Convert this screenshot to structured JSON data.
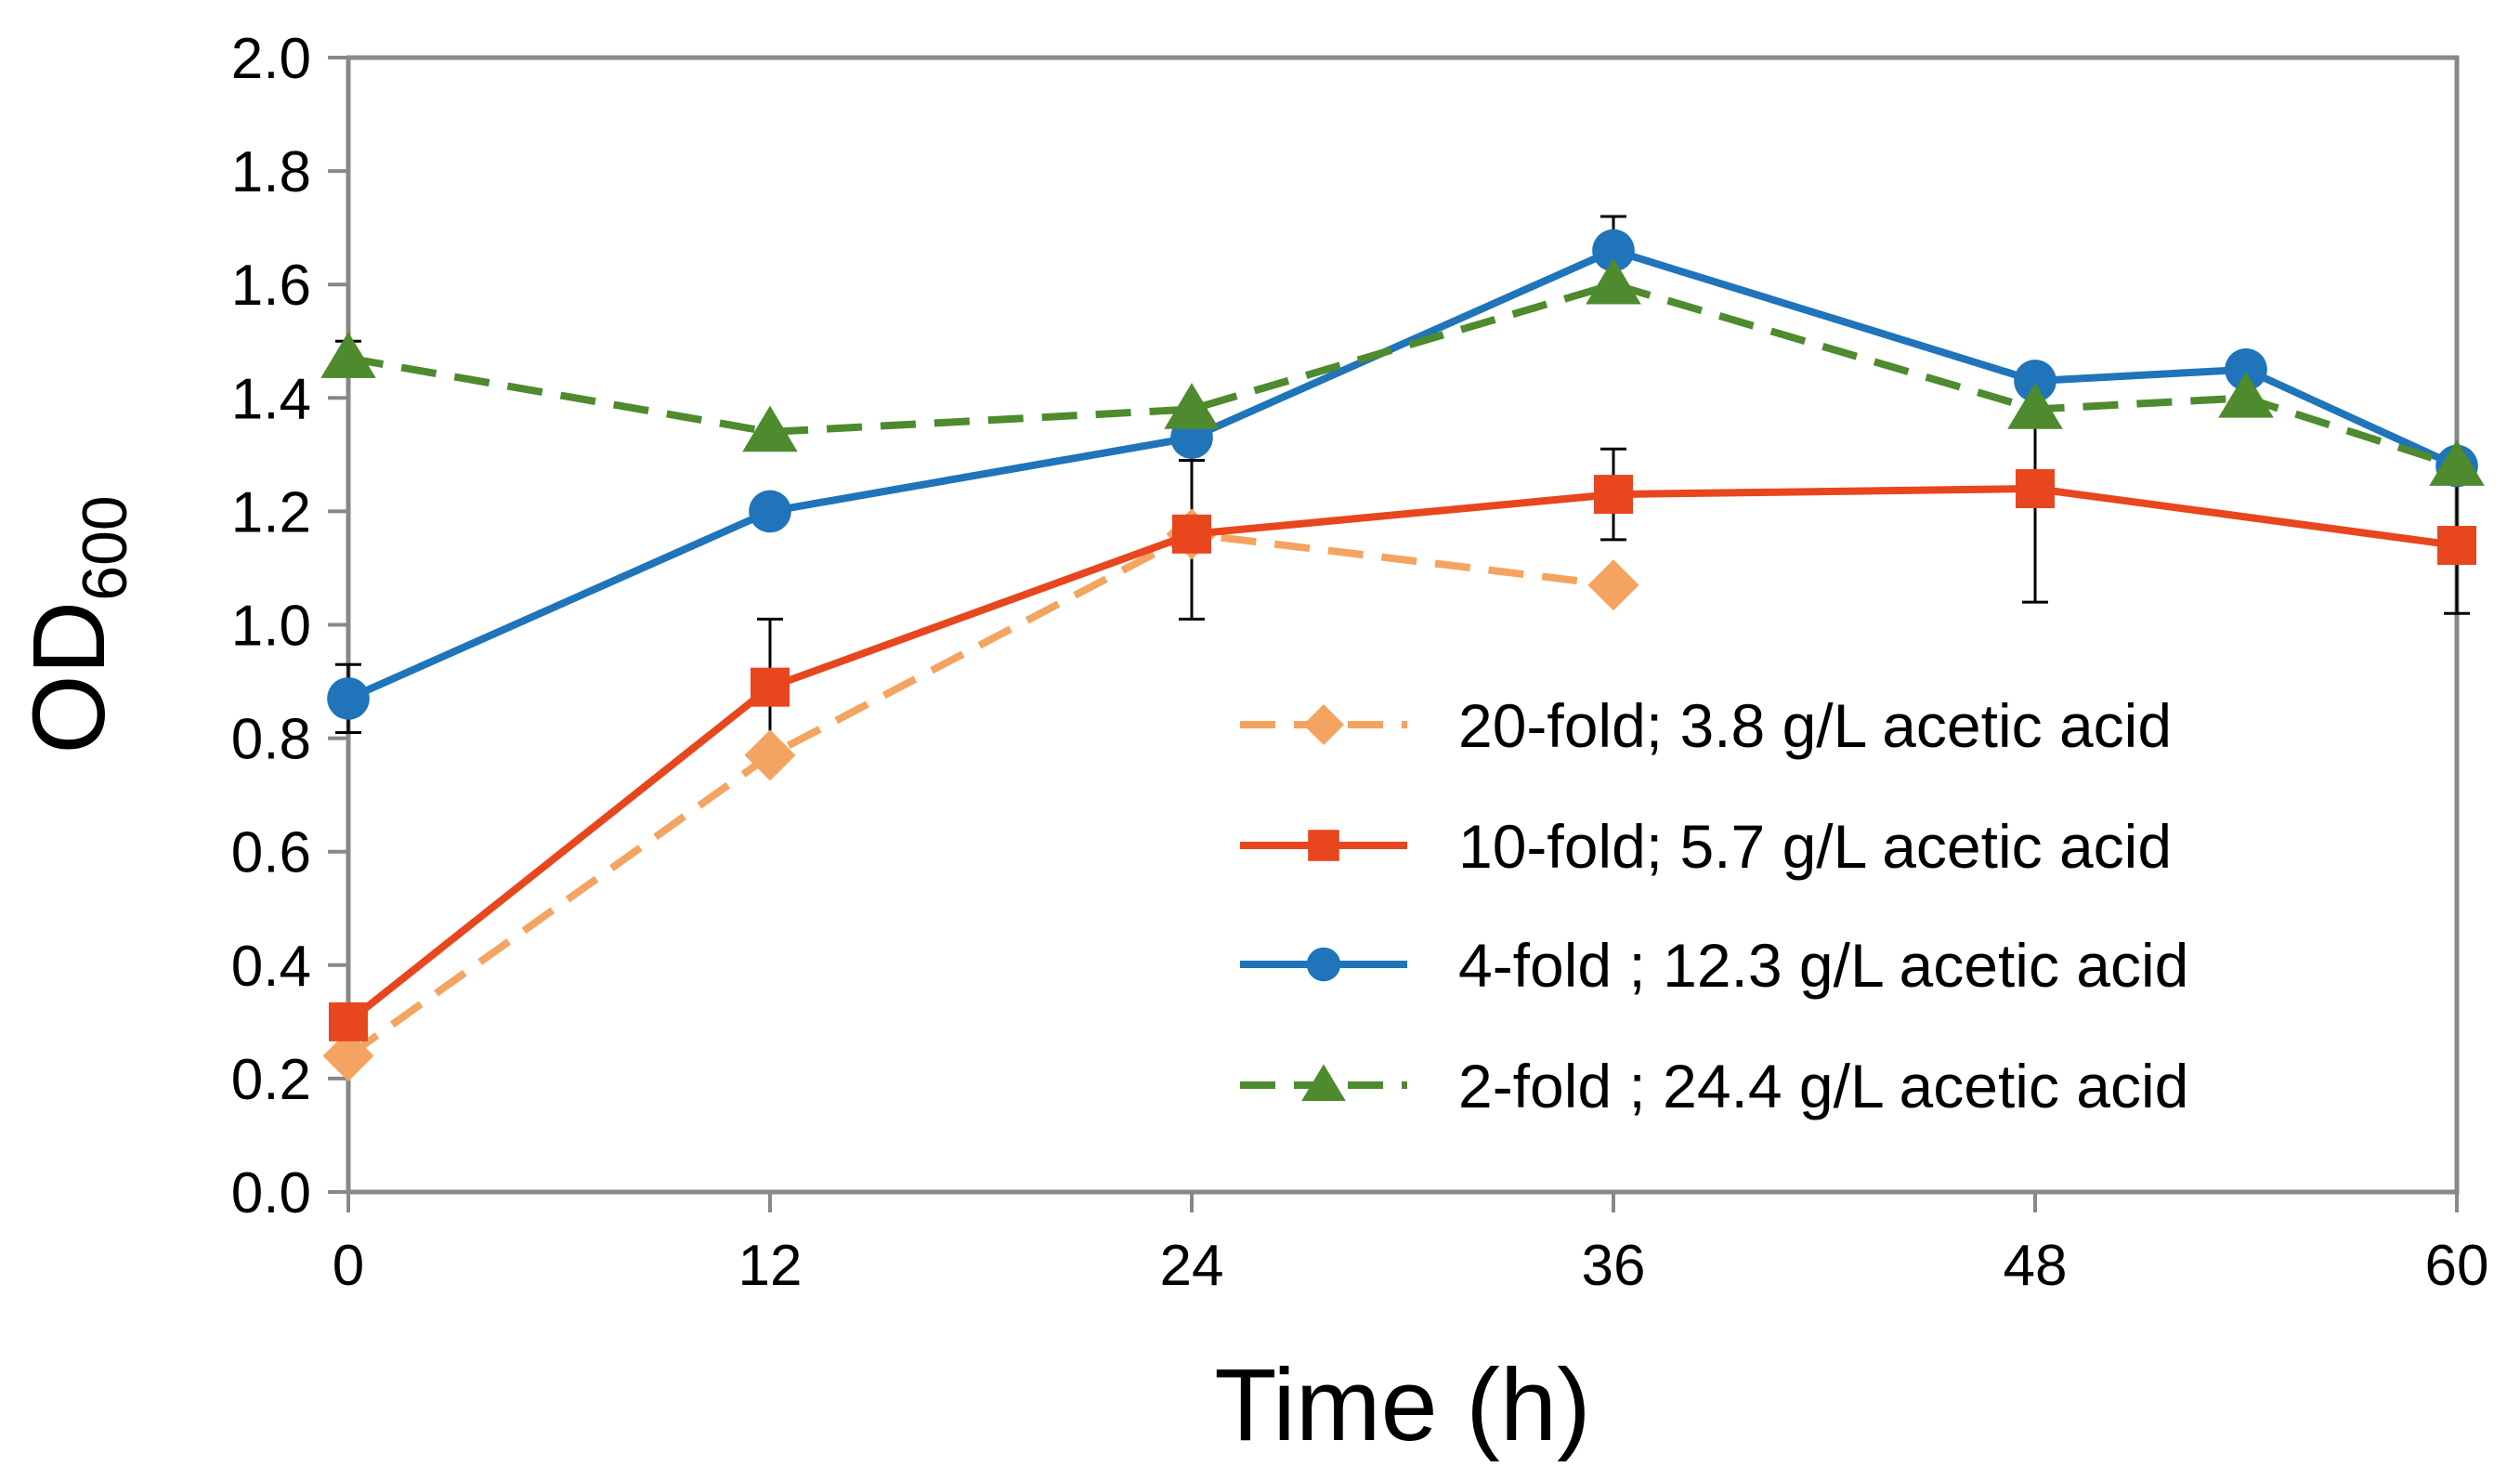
{
  "chart_data": {
    "type": "line",
    "title": "",
    "xlabel": "Time (h)",
    "ylabel": {
      "main": "OD",
      "subscript": "600"
    },
    "xlim": [
      0,
      60
    ],
    "ylim": [
      0,
      2.0
    ],
    "xticks": [
      "0",
      "12",
      "24",
      "36",
      "48",
      "60"
    ],
    "yticks": [
      "0.0",
      "0.2",
      "0.4",
      "0.6",
      "0.8",
      "1.0",
      "1.2",
      "1.4",
      "1.6",
      "1.8",
      "2.0"
    ],
    "grid": false,
    "legend_position": "bottom-right",
    "series": [
      {
        "name": "20-fold; 3.8 g/L acetic acid",
        "color": "#F4A460",
        "dash": true,
        "marker": "diamond",
        "x": [
          0,
          12,
          24,
          36
        ],
        "y": [
          0.24,
          0.77,
          1.16,
          1.07
        ],
        "err": [
          0,
          0,
          0,
          0
        ]
      },
      {
        "name": "10-fold; 5.7 g/L acetic acid",
        "color": "#E8461E",
        "dash": false,
        "marker": "square",
        "x": [
          0,
          12,
          24,
          36,
          48,
          60
        ],
        "y": [
          0.3,
          0.89,
          1.16,
          1.23,
          1.24,
          1.14
        ],
        "err": [
          0,
          0.12,
          0.15,
          0.08,
          0.2,
          0.12
        ]
      },
      {
        "name": "4-fold ; 12.3 g/L acetic acid",
        "color": "#1F74BA",
        "dash": false,
        "marker": "circle",
        "x": [
          0,
          12,
          24,
          36,
          48,
          54,
          60
        ],
        "y": [
          0.87,
          1.2,
          1.33,
          1.66,
          1.43,
          1.45,
          1.28
        ],
        "err": [
          0.06,
          0,
          0.04,
          0.06,
          0,
          0,
          0
        ]
      },
      {
        "name": "2-fold ; 24.4 g/L acetic acid",
        "color": "#4E8A2E",
        "dash": true,
        "marker": "triangle",
        "x": [
          0,
          12,
          24,
          36,
          48,
          54,
          60
        ],
        "y": [
          1.47,
          1.34,
          1.38,
          1.6,
          1.38,
          1.4,
          1.28
        ],
        "err": [
          0.03,
          0,
          0,
          0,
          0,
          0,
          0
        ]
      }
    ]
  }
}
